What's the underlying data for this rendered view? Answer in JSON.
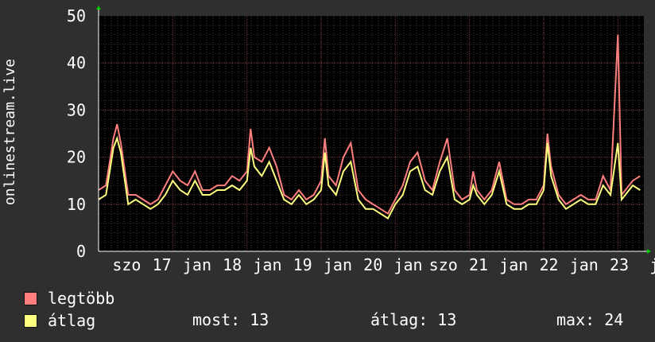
{
  "chart_data": {
    "type": "line",
    "ylabel": "onlinestream.live",
    "ylim": [
      0,
      50
    ],
    "yticks": [
      0,
      10,
      20,
      30,
      40,
      50
    ],
    "grid": true,
    "x_tick_labels": [
      "szo",
      "17",
      "jan",
      "18",
      "jan",
      "19",
      "jan",
      "20",
      "jan",
      "szo",
      "21",
      "jan",
      "22",
      "jan",
      "23",
      "j"
    ],
    "x_range_days": [
      16.0,
      23.35
    ],
    "series": [
      {
        "name": "legtöbb",
        "color": "#ff7f7f",
        "x": [
          16.0,
          16.1,
          16.2,
          16.25,
          16.3,
          16.4,
          16.5,
          16.6,
          16.7,
          16.8,
          16.9,
          17.0,
          17.1,
          17.2,
          17.3,
          17.4,
          17.5,
          17.6,
          17.7,
          17.8,
          17.9,
          18.0,
          18.05,
          18.1,
          18.2,
          18.3,
          18.4,
          18.5,
          18.6,
          18.7,
          18.8,
          18.9,
          19.0,
          19.05,
          19.1,
          19.2,
          19.3,
          19.4,
          19.5,
          19.6,
          19.7,
          19.8,
          19.9,
          20.0,
          20.1,
          20.2,
          20.3,
          20.4,
          20.5,
          20.6,
          20.7,
          20.8,
          20.9,
          21.0,
          21.05,
          21.1,
          21.2,
          21.3,
          21.4,
          21.5,
          21.6,
          21.7,
          21.8,
          21.9,
          22.0,
          22.05,
          22.1,
          22.2,
          22.3,
          22.4,
          22.5,
          22.6,
          22.7,
          22.8,
          22.9,
          23.0,
          23.05,
          23.1,
          23.2,
          23.3
        ],
        "values": [
          13,
          14,
          24,
          27,
          23,
          12,
          12,
          11,
          10,
          11,
          14,
          17,
          15,
          14,
          17,
          13,
          13,
          14,
          14,
          16,
          15,
          17,
          26,
          20,
          19,
          22,
          18,
          12,
          11,
          13,
          11,
          12,
          15,
          24,
          16,
          14,
          20,
          23,
          13,
          11,
          10,
          9,
          8,
          11,
          14,
          19,
          21,
          15,
          13,
          19,
          24,
          13,
          11,
          12,
          17,
          13,
          11,
          13,
          19,
          11,
          10,
          10,
          11,
          11,
          14,
          25,
          18,
          12,
          10,
          11,
          12,
          11,
          11,
          16,
          13,
          46,
          12,
          13,
          15,
          16
        ]
      },
      {
        "name": "átlag",
        "color": "#ffff7f",
        "x": [
          16.0,
          16.1,
          16.2,
          16.25,
          16.3,
          16.4,
          16.5,
          16.6,
          16.7,
          16.8,
          16.9,
          17.0,
          17.1,
          17.2,
          17.3,
          17.4,
          17.5,
          17.6,
          17.7,
          17.8,
          17.9,
          18.0,
          18.05,
          18.1,
          18.2,
          18.3,
          18.4,
          18.5,
          18.6,
          18.7,
          18.8,
          18.9,
          19.0,
          19.05,
          19.1,
          19.2,
          19.3,
          19.4,
          19.5,
          19.6,
          19.7,
          19.8,
          19.9,
          20.0,
          20.1,
          20.2,
          20.3,
          20.4,
          20.5,
          20.6,
          20.7,
          20.8,
          20.9,
          21.0,
          21.05,
          21.1,
          21.2,
          21.3,
          21.4,
          21.5,
          21.6,
          21.7,
          21.8,
          21.9,
          22.0,
          22.05,
          22.1,
          22.2,
          22.3,
          22.4,
          22.5,
          22.6,
          22.7,
          22.8,
          22.9,
          23.0,
          23.05,
          23.1,
          23.2,
          23.3
        ],
        "values": [
          11,
          12,
          22,
          24,
          21,
          10,
          11,
          10,
          9,
          10,
          12,
          15,
          13,
          12,
          15,
          12,
          12,
          13,
          13,
          14,
          13,
          15,
          22,
          18,
          16,
          19,
          15,
          11,
          10,
          12,
          10,
          11,
          13,
          21,
          14,
          12,
          17,
          19,
          11,
          9,
          9,
          8,
          7,
          10,
          12,
          17,
          18,
          13,
          12,
          17,
          20,
          11,
          10,
          11,
          14,
          12,
          10,
          12,
          17,
          10,
          9,
          9,
          10,
          10,
          13,
          23,
          16,
          11,
          9,
          10,
          11,
          10,
          10,
          14,
          12,
          23,
          11,
          12,
          14,
          13
        ]
      }
    ]
  },
  "legend": [
    {
      "label": "legtöbb",
      "color": "#ff7f7f"
    },
    {
      "label": "átlag",
      "color": "#ffff7f"
    }
  ],
  "stats": {
    "now": "most: 13",
    "avg": "átlag: 13",
    "max": "max: 24"
  }
}
